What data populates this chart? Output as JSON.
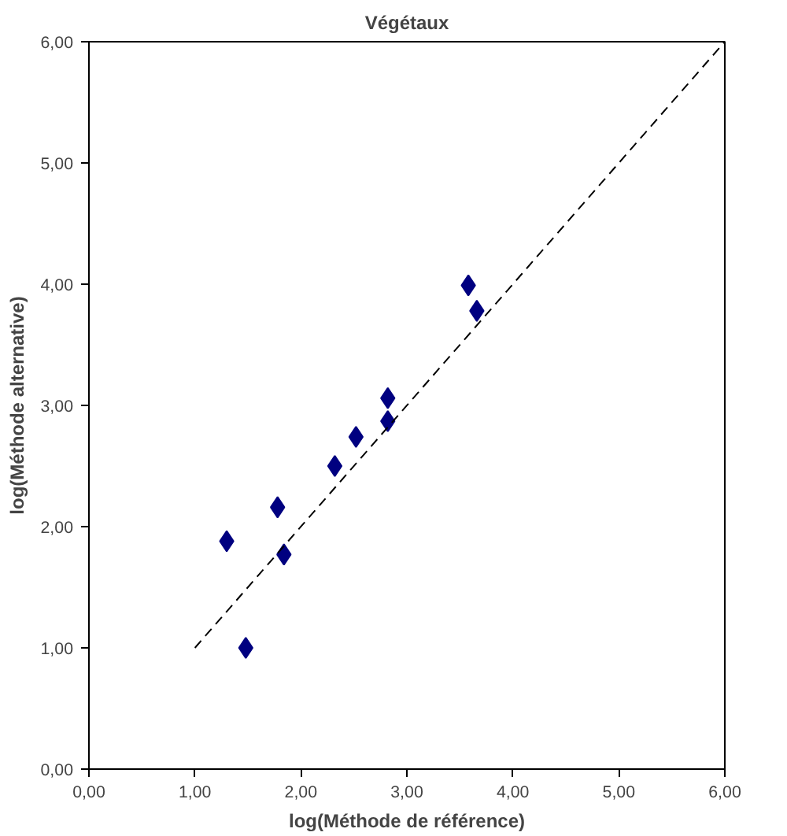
{
  "chart_data": {
    "type": "scatter",
    "title": "Végétaux",
    "xlabel": "log(Méthode de référence)",
    "ylabel": "log(Méthode alternative)",
    "xlim": [
      0,
      6
    ],
    "ylim": [
      0,
      6
    ],
    "xticks": [
      {
        "value": 0,
        "label": "0,00"
      },
      {
        "value": 1,
        "label": "1,00"
      },
      {
        "value": 2,
        "label": "2,00"
      },
      {
        "value": 3,
        "label": "3,00"
      },
      {
        "value": 4,
        "label": "4,00"
      },
      {
        "value": 5,
        "label": "5,00"
      },
      {
        "value": 6,
        "label": "6,00"
      }
    ],
    "yticks": [
      {
        "value": 0,
        "label": "0,00"
      },
      {
        "value": 1,
        "label": "1,00"
      },
      {
        "value": 2,
        "label": "2,00"
      },
      {
        "value": 3,
        "label": "3,00"
      },
      {
        "value": 4,
        "label": "4,00"
      },
      {
        "value": 5,
        "label": "5,00"
      },
      {
        "value": 6,
        "label": "6,00"
      }
    ],
    "grid": false,
    "series": [
      {
        "marker": "diamond",
        "color": "#000080",
        "x": [
          1.3,
          1.48,
          1.78,
          1.84,
          2.32,
          2.52,
          2.82,
          2.82,
          3.58,
          3.66
        ],
        "values": [
          1.88,
          1.0,
          2.16,
          1.77,
          2.5,
          2.74,
          3.06,
          2.87,
          3.99,
          3.78
        ]
      },
      {
        "type": "line",
        "line_style": "dashed",
        "marker": "none",
        "color": "#000000",
        "x": [
          1,
          6
        ],
        "values": [
          1,
          6
        ]
      }
    ]
  }
}
